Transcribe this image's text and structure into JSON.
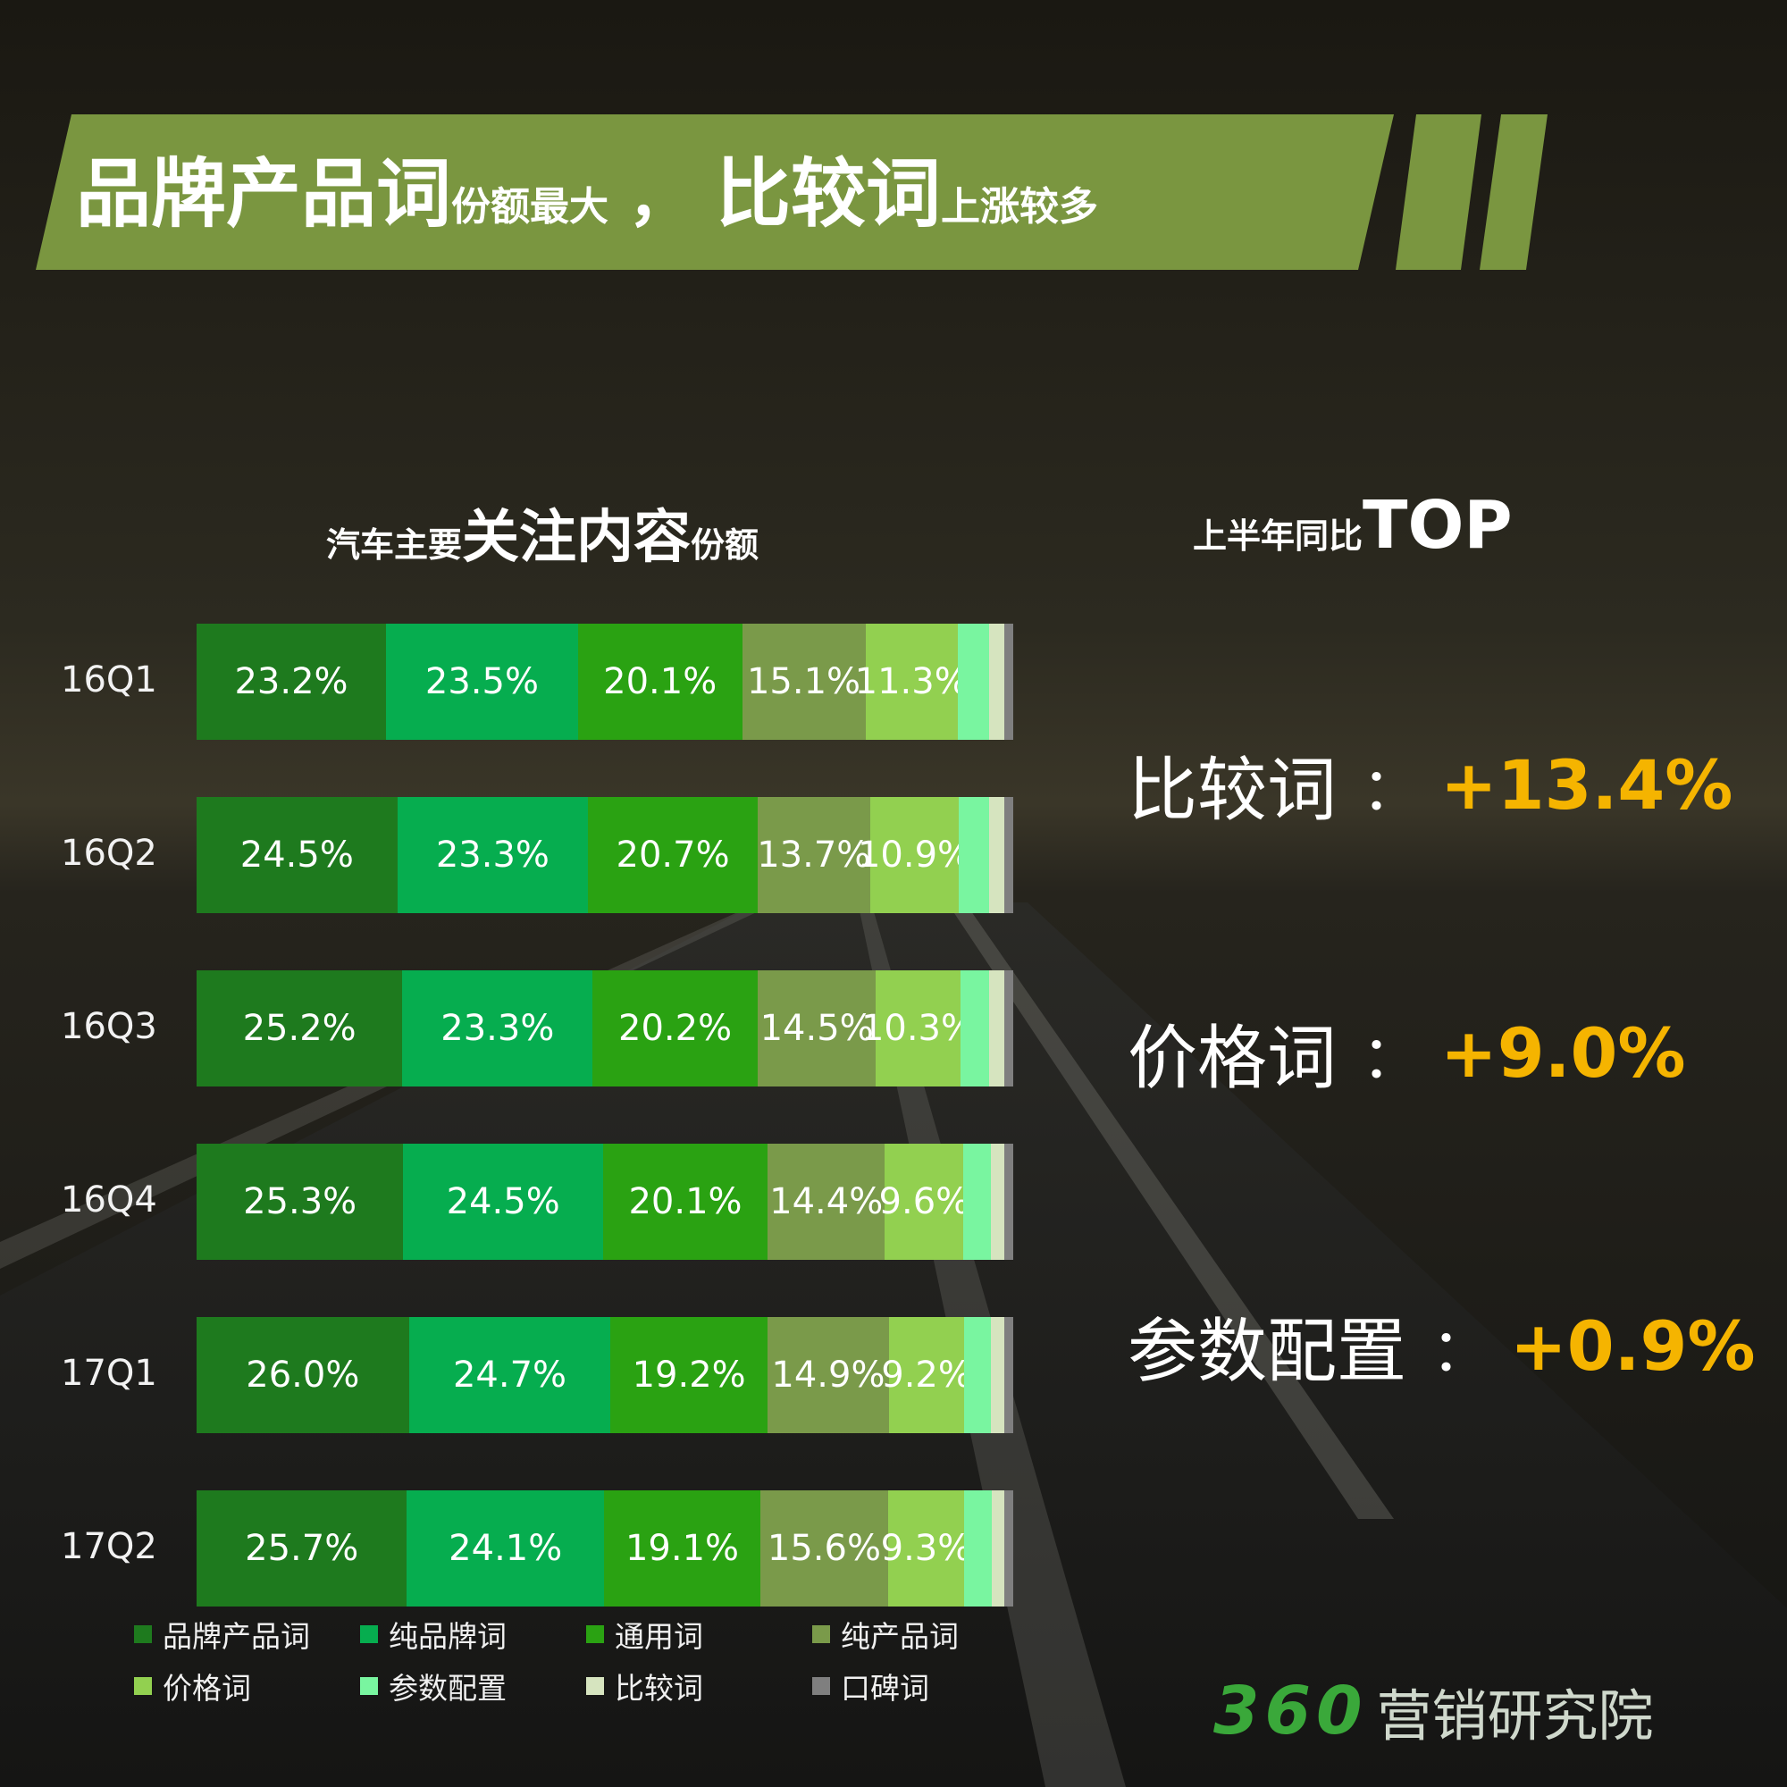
{
  "header": {
    "part1": "品牌产品词",
    "part2": "份额最大",
    "sep": "，",
    "part3": "比较词",
    "part4": "上涨较多"
  },
  "chart_title": {
    "pre": "汽车主要",
    "main": "关注内容",
    "post": "份额"
  },
  "top_title": {
    "pre": "上半年同比",
    "main": "TOP"
  },
  "top_items": [
    {
      "name": "比较词",
      "colon": "：",
      "value": "+13.4%"
    },
    {
      "name": "价格词",
      "colon": "：",
      "value": "+9.0%"
    },
    {
      "name": "参数配置",
      "colon": "：",
      "value": "+0.9%"
    }
  ],
  "brand": {
    "num": "360",
    "text": "营销研究院"
  },
  "colors": {
    "banner": "#7a9640",
    "accent_value": "#f5b400"
  },
  "chart_data": {
    "type": "bar",
    "stacked": true,
    "orientation": "horizontal",
    "categories": [
      "16Q1",
      "16Q2",
      "16Q3",
      "16Q4",
      "17Q1",
      "17Q2"
    ],
    "series": [
      {
        "name": "品牌产品词",
        "color": "#1e7a1e",
        "values": [
          23.2,
          24.5,
          25.2,
          25.3,
          26.0,
          25.7
        ],
        "labels": [
          "23.2%",
          "24.5%",
          "25.2%",
          "25.3%",
          "26.0%",
          "25.7%"
        ]
      },
      {
        "name": "纯品牌词",
        "color": "#06ad4f",
        "values": [
          23.5,
          23.3,
          23.3,
          24.5,
          24.7,
          24.1
        ],
        "labels": [
          "23.5%",
          "23.3%",
          "23.3%",
          "24.5%",
          "24.7%",
          "24.1%"
        ]
      },
      {
        "name": "通用词",
        "color": "#2aa212",
        "values": [
          20.1,
          20.7,
          20.2,
          20.1,
          19.2,
          19.1
        ],
        "labels": [
          "20.1%",
          "20.7%",
          "20.2%",
          "20.1%",
          "19.2%",
          "19.1%"
        ]
      },
      {
        "name": "纯产品词",
        "color": "#7a9a4a",
        "values": [
          15.1,
          13.7,
          14.5,
          14.4,
          14.9,
          15.6
        ],
        "labels": [
          "15.1%",
          "13.7%",
          "14.5%",
          "14.4%",
          "14.9%",
          "15.6%"
        ]
      },
      {
        "name": "价格词",
        "color": "#92d050",
        "values": [
          11.3,
          10.9,
          10.3,
          9.6,
          9.2,
          9.3
        ],
        "labels": [
          "11.3%",
          "10.9%",
          "10.3%",
          "9.6%",
          "9.2%",
          "9.3%"
        ]
      },
      {
        "name": "参数配置",
        "color": "#79f5a0",
        "values": [
          3.8,
          3.7,
          3.6,
          3.4,
          3.3,
          3.4
        ],
        "labels": [
          "",
          "",
          "",
          "",
          "",
          ""
        ]
      },
      {
        "name": "比较词",
        "color": "#d6e4bf",
        "values": [
          1.9,
          1.8,
          1.8,
          1.6,
          1.6,
          1.5
        ],
        "labels": [
          "",
          "",
          "",
          "",
          "",
          ""
        ]
      },
      {
        "name": "口碑词",
        "color": "#7f7f7f",
        "values": [
          1.1,
          1.1,
          1.1,
          1.1,
          1.1,
          1.1
        ],
        "labels": [
          "",
          "",
          "",
          "",
          "",
          ""
        ]
      }
    ],
    "xlim": [
      0,
      100
    ]
  }
}
